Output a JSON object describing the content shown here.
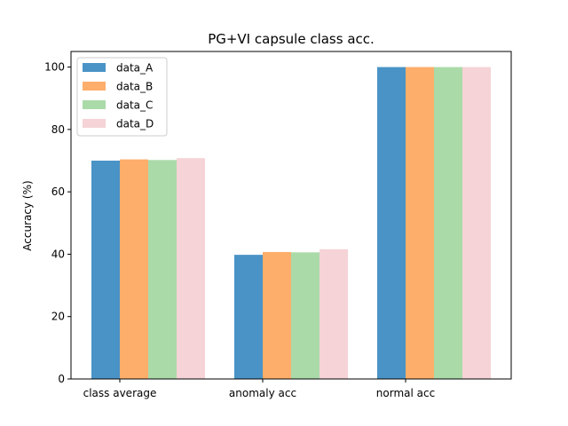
{
  "chart_data": {
    "type": "bar",
    "title": "PG+VI capsule class acc.",
    "ylabel": "Accuracy (%)",
    "xlabel": "",
    "categories": [
      "class average",
      "anomaly acc",
      "normal acc"
    ],
    "ylim": [
      0,
      105
    ],
    "yticks": [
      0,
      20,
      40,
      60,
      80,
      100
    ],
    "grid": false,
    "legend_position": "top-left",
    "series": [
      {
        "name": "data_A",
        "color": "#4a93c6",
        "values": [
          70.0,
          39.8,
          100.0
        ]
      },
      {
        "name": "data_B",
        "color": "#fdae6b",
        "values": [
          70.4,
          40.7,
          100.0
        ]
      },
      {
        "name": "data_C",
        "color": "#abdaa9",
        "values": [
          70.2,
          40.6,
          100.0
        ]
      },
      {
        "name": "data_D",
        "color": "#f5d3d6",
        "values": [
          70.8,
          41.6,
          100.0
        ]
      }
    ]
  }
}
